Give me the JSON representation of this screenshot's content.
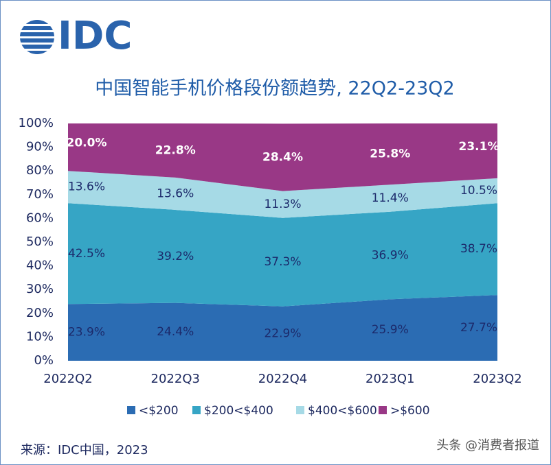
{
  "logo": "IDC",
  "source": "来源：IDC中国，2023",
  "watermark": "头条 @消费者报道",
  "chart_data": {
    "type": "stacked_area",
    "title": "中国智能手机价格段份额趋势, 22Q2-23Q2",
    "categories": [
      "2022Q2",
      "2022Q3",
      "2022Q4",
      "2023Q1",
      "2023Q2"
    ],
    "series": [
      {
        "name": "<$200",
        "color": "#2b6cb3",
        "values": [
          23.9,
          24.4,
          22.9,
          25.9,
          27.7
        ],
        "value_labels": [
          "23.9%",
          "24.4%",
          "22.9%",
          "25.9%",
          "27.7%"
        ]
      },
      {
        "name": "$200<$400",
        "color": "#36a5c5",
        "values": [
          42.5,
          39.2,
          37.3,
          36.9,
          38.7
        ],
        "value_labels": [
          "42.5%",
          "39.2%",
          "37.3%",
          "36.9%",
          "38.7%"
        ]
      },
      {
        "name": "$400<$600",
        "color": "#a6dae6",
        "values": [
          13.6,
          13.6,
          11.3,
          11.4,
          10.5
        ],
        "value_labels": [
          "13.6%",
          "13.6%",
          "11.3%",
          "11.4%",
          "10.5%"
        ]
      },
      {
        "name": ">$600",
        "color": "#993886",
        "values": [
          20.0,
          22.8,
          28.4,
          25.8,
          23.1
        ],
        "value_labels": [
          "20.0%",
          "22.8%",
          "28.4%",
          "25.8%",
          "23.1%"
        ]
      }
    ],
    "ylim": [
      0,
      100
    ],
    "yticks": [
      {
        "value": 0,
        "label": "0%"
      },
      {
        "value": 10,
        "label": "10%"
      },
      {
        "value": 20,
        "label": "20%"
      },
      {
        "value": 30,
        "label": "30%"
      },
      {
        "value": 40,
        "label": "40%"
      },
      {
        "value": 50,
        "label": "50%"
      },
      {
        "value": 60,
        "label": "60%"
      },
      {
        "value": 70,
        "label": "70%"
      },
      {
        "value": 80,
        "label": "80%"
      },
      {
        "value": 90,
        "label": "90%"
      },
      {
        "value": 100,
        "label": "100%"
      }
    ],
    "legend": "bottom"
  }
}
